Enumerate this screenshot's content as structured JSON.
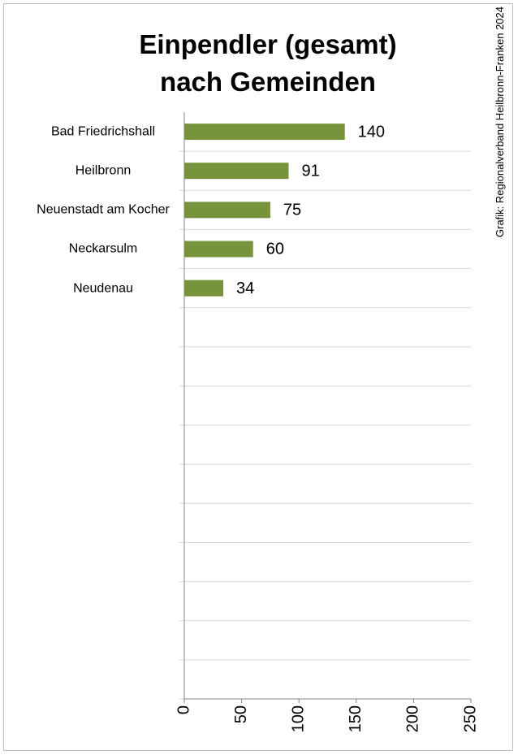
{
  "chart_data": {
    "type": "bar",
    "orientation": "horizontal",
    "title": "Einpendler (gesamt) nach Gemeinden",
    "source": "Grafik: Regionalverband Heilbronn-Franken 2024",
    "categories": [
      "Bad Friedrichshall",
      "Heilbronn",
      "Neuenstadt am Kocher",
      "Neckarsulm",
      "Neudenau",
      null,
      null,
      null,
      null,
      null,
      null,
      null,
      null,
      null,
      null
    ],
    "values": [
      140,
      91,
      75,
      60,
      34,
      null,
      null,
      null,
      null,
      null,
      null,
      null,
      null,
      null,
      null
    ],
    "color": "#77933c",
    "xlim": [
      0,
      250
    ],
    "xticks": [
      0,
      50,
      100,
      150,
      200,
      250
    ],
    "grid": true
  }
}
